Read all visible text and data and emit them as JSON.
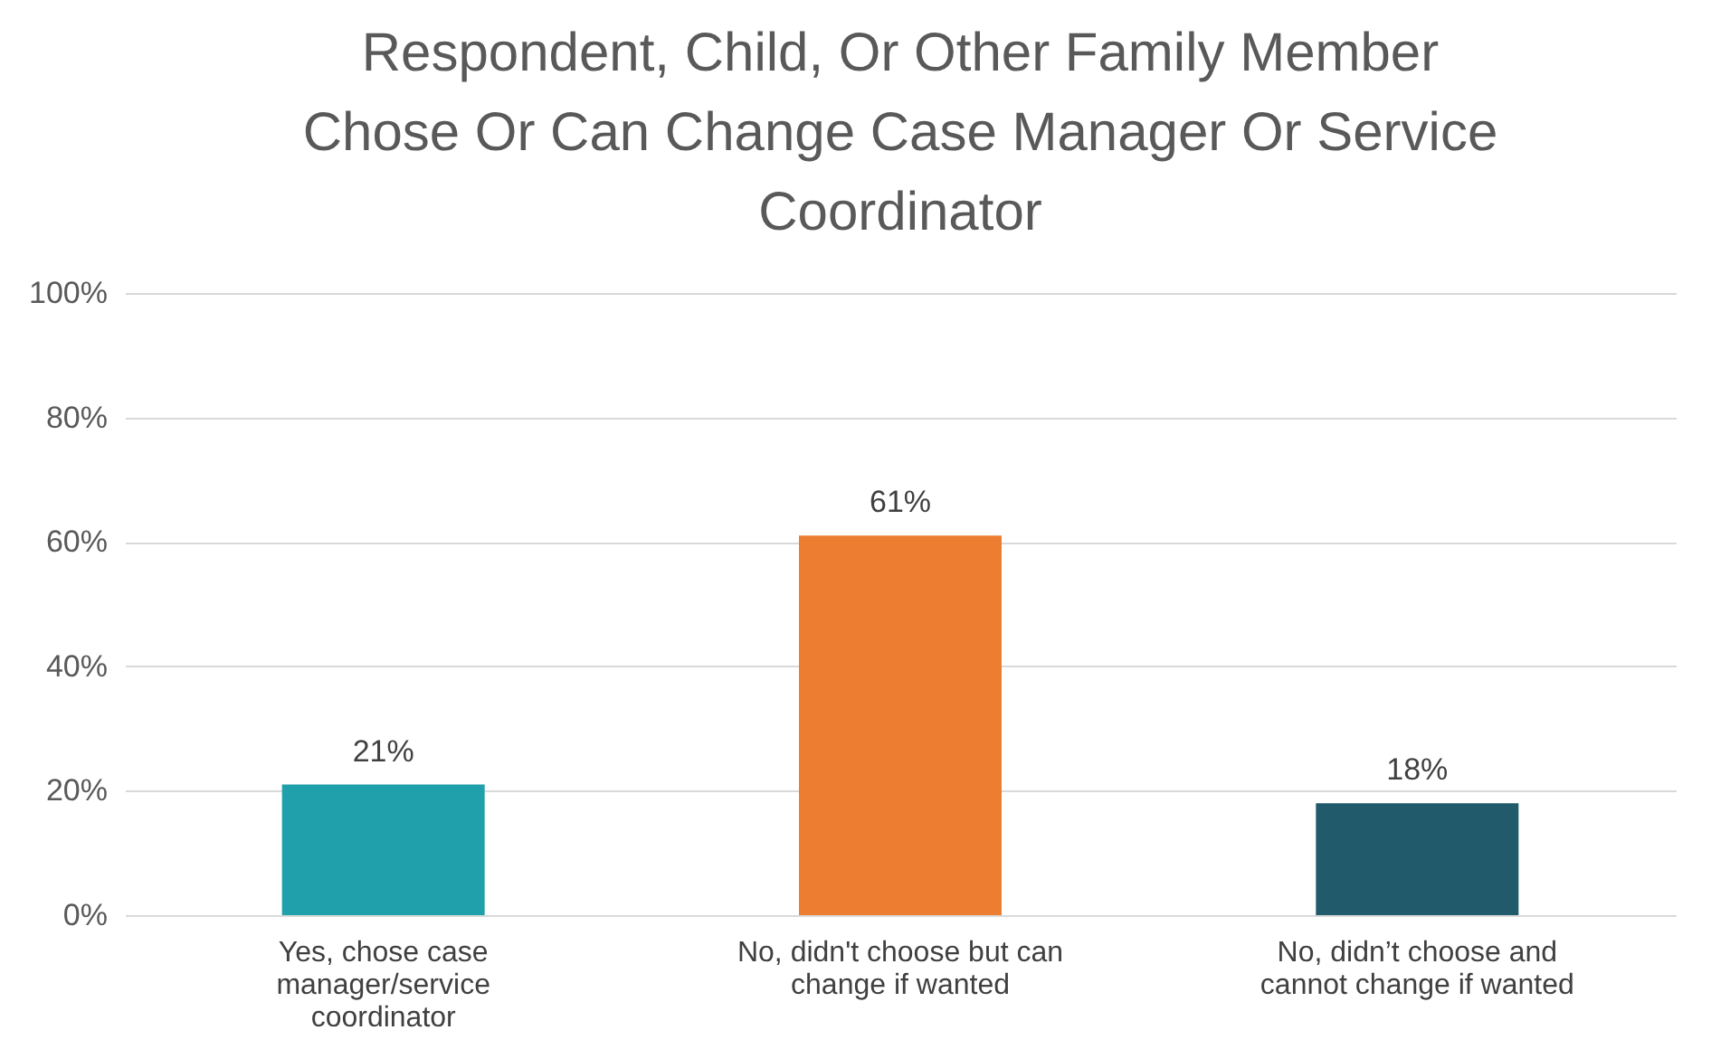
{
  "chart_data": {
    "type": "bar",
    "title": "Respondent, Child, Or Other Family Member Chose Or Can Change Case Manager Or Service Coordinator",
    "categories": [
      "Yes, chose case manager/service coordinator",
      "No, didn't choose but can change if wanted",
      "No, didn’t choose and cannot change if wanted"
    ],
    "values": [
      21,
      61,
      18
    ],
    "colors": [
      "#20a0aa",
      "#ed7d31",
      "#215a6b"
    ],
    "value_labels": [
      "21%",
      "61%",
      "18%"
    ],
    "ylim": [
      0,
      100
    ],
    "yticks": [
      {
        "value": 0,
        "label": "0%"
      },
      {
        "value": 20,
        "label": "20%"
      },
      {
        "value": 40,
        "label": "40%"
      },
      {
        "value": 60,
        "label": "60%"
      },
      {
        "value": 80,
        "label": "80%"
      },
      {
        "value": 100,
        "label": "100%"
      }
    ],
    "grid": "y"
  }
}
